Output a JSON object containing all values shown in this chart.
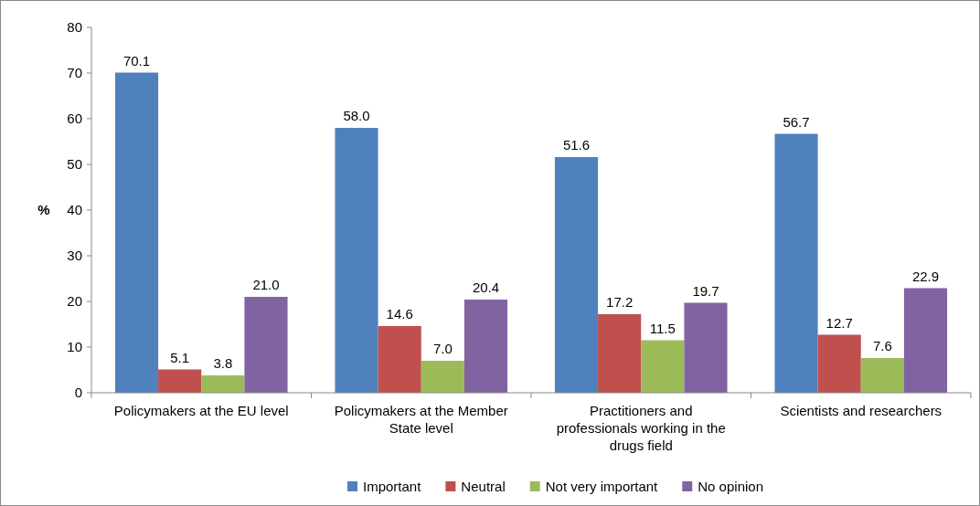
{
  "chart_data": {
    "type": "bar",
    "ylabel": "%",
    "categories": [
      "Policymakers at the EU level",
      "Policymakers at the Member State level",
      "Practitioners and professionals working in the drugs field",
      "Scientists and researchers"
    ],
    "series": [
      {
        "name": "Important",
        "color": "#4f81bd",
        "values": [
          70.1,
          58.0,
          51.6,
          56.7
        ],
        "value_labels": [
          "70.1",
          "58.0",
          "51.6",
          "56.7"
        ]
      },
      {
        "name": "Neutral",
        "color": "#c0504d",
        "values": [
          5.1,
          14.6,
          17.2,
          12.7
        ],
        "value_labels": [
          "5.1",
          "14.6",
          "17.2",
          "12.7"
        ]
      },
      {
        "name": "Not very important",
        "color": "#9bbb59",
        "values": [
          3.8,
          7.0,
          11.5,
          7.6
        ],
        "value_labels": [
          "3.8",
          "7.0",
          "11.5",
          "7.6"
        ]
      },
      {
        "name": "No opinion",
        "color": "#8064a2",
        "values": [
          21.0,
          20.4,
          19.7,
          22.9
        ],
        "value_labels": [
          "21.0",
          "20.4",
          "19.7",
          "22.9"
        ]
      }
    ],
    "ylim": [
      0,
      80
    ],
    "yticks": [
      0,
      10,
      20,
      30,
      40,
      50,
      60,
      70,
      80
    ],
    "legend": "bottom"
  }
}
